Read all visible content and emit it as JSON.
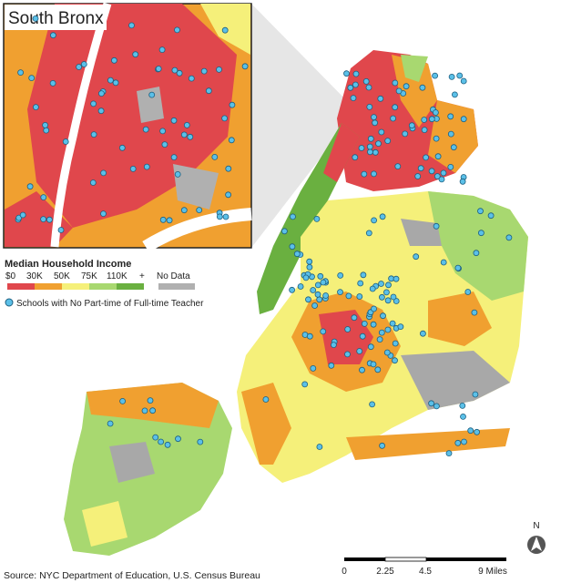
{
  "inset": {
    "title": "South Bronx"
  },
  "legend": {
    "title": "Median Household Income",
    "labels": [
      "$0",
      "30K",
      "50K",
      "75K",
      "110K",
      "+"
    ],
    "no_data": "No Data",
    "schools": "Schools with No Part-time of Full-time Teacher"
  },
  "scale_bar": {
    "labels": [
      "0",
      "2.25",
      "4.5",
      "9 Miles"
    ]
  },
  "north": "N",
  "source": "Source: NYC Department of Education, U.S. Census Bureau"
}
